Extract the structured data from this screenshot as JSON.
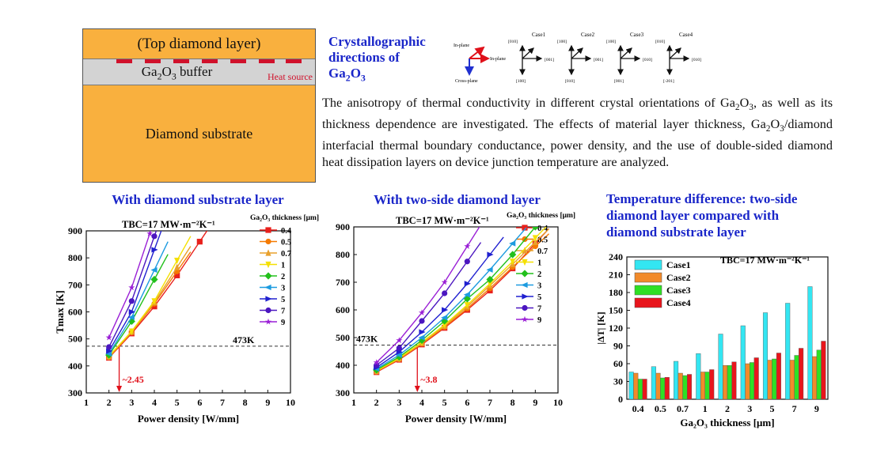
{
  "structure": {
    "top_layer": "(Top diamond layer)",
    "buffer_label": "Ga",
    "buffer_sub": "2",
    "buffer_label2": "O",
    "buffer_sub2": "3",
    "buffer_label3": " buffer",
    "heat_source": "Heat source",
    "substrate": "Diamond substrate"
  },
  "crystal": {
    "title_line1": "Crystallographic",
    "title_line2": "directions of",
    "title_ga": "Ga",
    "title_sub1": "2",
    "title_o": "O",
    "title_sub2": "3",
    "axes_labels": {
      "in_plane_1": "In-plane",
      "in_plane_2": "In-plane",
      "cross_plane": "Cross-plane"
    },
    "cases": [
      {
        "name": "Case1",
        "up": "[010]",
        "right": "[001]",
        "down": "[100]"
      },
      {
        "name": "Case2",
        "up": "[100]",
        "right": "[001]",
        "down": "[010]"
      },
      {
        "name": "Case3",
        "up": "[100]",
        "right": "[010]",
        "down": "[001]"
      },
      {
        "name": "Case4",
        "up": "[010]",
        "right": "[010]",
        "down": "[-201]"
      }
    ]
  },
  "paragraph": "The anisotropy of thermal conductivity in different crystal orientations of Ga2O3, as well as its thickness dependence are investigated. The effects of material layer thickness, Ga2O3/diamond interfacial thermal boundary conductance, power density, and the use of double-sided diamond heat dissipation layers on device junction temperature are analyzed.",
  "colors": {
    "title_blue": "#1a26c9",
    "orange": "#f9b03e",
    "heat_red": "#d0112b"
  },
  "chart_data": [
    {
      "type": "line",
      "title": "With diamond substrate layer",
      "annotation": "TBC=17 MW·m⁻²K⁻¹",
      "legend_title": "Ga₂O₃ thickness [μm]",
      "xlabel": "Power density [W/mm]",
      "ylabel": "Tmax [K]",
      "xlim": [
        1,
        10
      ],
      "ylim": [
        300,
        900
      ],
      "xticks": [
        "1",
        "2",
        "3",
        "4",
        "5",
        "6",
        "7",
        "8",
        "9",
        "10"
      ],
      "yticks": [
        "300",
        "400",
        "500",
        "600",
        "700",
        "800",
        "900"
      ],
      "ref_line": {
        "y": 473,
        "label": "473K"
      },
      "arrow_label": "~2.45",
      "arrow_x": 2.45,
      "series": [
        {
          "name": "0.4",
          "color": "#e8201c",
          "marker": "square",
          "x": [
            2,
            3,
            4,
            5,
            6
          ],
          "y": [
            430,
            520,
            620,
            735,
            860
          ]
        },
        {
          "name": "0.5",
          "color": "#f57a00",
          "marker": "circle",
          "x": [
            2,
            3,
            4,
            5
          ],
          "y": [
            432,
            524,
            630,
            750
          ]
        },
        {
          "name": "0.7",
          "color": "#e8a02c",
          "marker": "triangle",
          "x": [
            2,
            3,
            4,
            5
          ],
          "y": [
            434,
            526,
            635,
            765
          ]
        },
        {
          "name": "1",
          "color": "#f5e000",
          "marker": "tri-down",
          "x": [
            2,
            3,
            4,
            5
          ],
          "y": [
            436,
            528,
            640,
            790
          ]
        },
        {
          "name": "2",
          "color": "#22c01c",
          "marker": "diamond",
          "x": [
            2,
            3,
            4
          ],
          "y": [
            440,
            565,
            720
          ]
        },
        {
          "name": "3",
          "color": "#1c9be0",
          "marker": "tri-left",
          "x": [
            2,
            3,
            4
          ],
          "y": [
            445,
            580,
            755
          ]
        },
        {
          "name": "5",
          "color": "#2020d0",
          "marker": "tri-right",
          "x": [
            2,
            3,
            4
          ],
          "y": [
            455,
            600,
            830
          ]
        },
        {
          "name": "7",
          "color": "#4b16c0",
          "marker": "hexagon",
          "x": [
            2,
            3,
            4
          ],
          "y": [
            470,
            640,
            880
          ]
        },
        {
          "name": "9",
          "color": "#9a1fd6",
          "marker": "star",
          "x": [
            2,
            3,
            3.8
          ],
          "y": [
            505,
            690,
            890
          ]
        }
      ]
    },
    {
      "type": "line",
      "title": "With two-side diamond layer",
      "annotation": "TBC=17 MW·m⁻²K⁻¹",
      "legend_title": "Ga₂O₃ thickness [μm]",
      "xlabel": "Power density [W/mm]",
      "ylabel": "",
      "xlim": [
        1,
        10
      ],
      "ylim": [
        300,
        900
      ],
      "xticks": [
        "1",
        "2",
        "3",
        "4",
        "5",
        "6",
        "7",
        "8",
        "9",
        "10"
      ],
      "yticks": [
        "300",
        "400",
        "500",
        "600",
        "700",
        "800",
        "900"
      ],
      "ref_line": {
        "y": 473,
        "label": "473K"
      },
      "arrow_label": "~3.8",
      "arrow_x": 3.8,
      "series": [
        {
          "name": "0.4",
          "color": "#e8201c",
          "marker": "square",
          "x": [
            2,
            3,
            4,
            5,
            6,
            7,
            8,
            9
          ],
          "y": [
            375,
            420,
            475,
            535,
            600,
            670,
            750,
            840
          ]
        },
        {
          "name": "0.5",
          "color": "#f57a00",
          "marker": "circle",
          "x": [
            2,
            3,
            4,
            5,
            6,
            7,
            8,
            9
          ],
          "y": [
            377,
            422,
            478,
            538,
            605,
            678,
            755,
            830
          ]
        },
        {
          "name": "0.7",
          "color": "#e8a02c",
          "marker": "triangle",
          "x": [
            2,
            3,
            4,
            5,
            6,
            7,
            8,
            9
          ],
          "y": [
            378,
            424,
            480,
            542,
            612,
            688,
            765,
            845
          ]
        },
        {
          "name": "1",
          "color": "#f5e000",
          "marker": "tri-down",
          "x": [
            2,
            3,
            4,
            5,
            6,
            7,
            8,
            9
          ],
          "y": [
            380,
            426,
            483,
            546,
            618,
            695,
            775,
            860
          ]
        },
        {
          "name": "2",
          "color": "#22c01c",
          "marker": "diamond",
          "x": [
            2,
            3,
            4,
            5,
            6,
            7,
            8,
            9
          ],
          "y": [
            383,
            430,
            490,
            560,
            640,
            710,
            800,
            900
          ]
        },
        {
          "name": "3",
          "color": "#1c9be0",
          "marker": "tri-left",
          "x": [
            2,
            3,
            4,
            5,
            6,
            7,
            8
          ],
          "y": [
            387,
            437,
            500,
            572,
            655,
            745,
            840
          ]
        },
        {
          "name": "5",
          "color": "#2020d0",
          "marker": "tri-right",
          "x": [
            2,
            3,
            4,
            5,
            6,
            7
          ],
          "y": [
            392,
            448,
            520,
            600,
            695,
            800
          ]
        },
        {
          "name": "7",
          "color": "#4b16c0",
          "marker": "hexagon",
          "x": [
            2,
            3,
            4,
            5,
            6
          ],
          "y": [
            400,
            462,
            560,
            660,
            775
          ]
        },
        {
          "name": "9",
          "color": "#9a1fd6",
          "marker": "star",
          "x": [
            2,
            3,
            4,
            5,
            6
          ],
          "y": [
            410,
            490,
            590,
            700,
            830
          ]
        }
      ]
    },
    {
      "type": "bar",
      "title_line1": "Temperature difference: two-side",
      "title_line2": "diamond layer compared with",
      "title_line3": "diamond substrate layer",
      "annotation": "TBC=17 MW·m⁻²K⁻¹",
      "xlabel": "Ga₂O₃ thickness [μm]",
      "ylabel": "|ΔT| [K]",
      "ylim": [
        0,
        240
      ],
      "yticks": [
        "0",
        "30",
        "60",
        "90",
        "120",
        "150",
        "180",
        "210",
        "240"
      ],
      "categories": [
        "0.4",
        "0.5",
        "0.7",
        "1",
        "2",
        "3",
        "5",
        "7",
        "9"
      ],
      "series": [
        {
          "name": "Case1",
          "color": "#33e6f2",
          "values": [
            46,
            55,
            64,
            77,
            110,
            124,
            146,
            162,
            190
          ]
        },
        {
          "name": "Case2",
          "color": "#f28a2a",
          "values": [
            44,
            44,
            44,
            46,
            57,
            60,
            66,
            66,
            72
          ]
        },
        {
          "name": "Case3",
          "color": "#2ee024",
          "values": [
            34,
            36,
            40,
            46,
            57,
            62,
            68,
            74,
            83
          ]
        },
        {
          "name": "Case4",
          "color": "#e8151c",
          "values": [
            34,
            37,
            42,
            50,
            63,
            70,
            78,
            86,
            98
          ]
        }
      ]
    }
  ]
}
